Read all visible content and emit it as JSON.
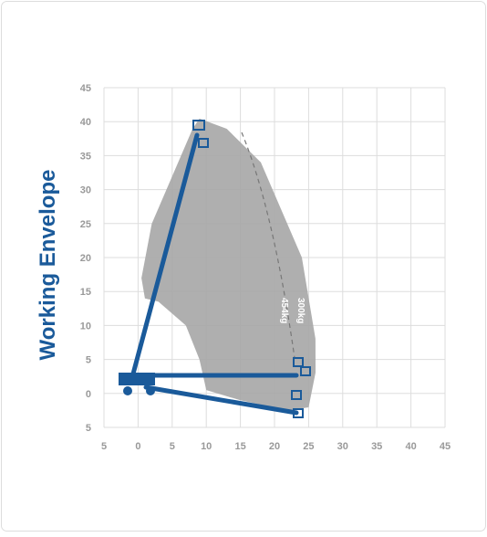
{
  "chart_data": {
    "type": "envelope",
    "title": "Working Envelope",
    "xlim": [
      -5,
      45
    ],
    "xticks": [
      {
        "value": -5,
        "label": "5"
      },
      0,
      5,
      10,
      15,
      20,
      25,
      30,
      35,
      40,
      45
    ],
    "ylim": [
      -5,
      45
    ],
    "yticks": [
      {
        "value": -5,
        "label": "5"
      },
      0,
      5,
      10,
      15,
      20,
      25,
      30,
      35,
      40,
      45
    ],
    "grid": true,
    "annotations": [
      "300kg",
      "454kg"
    ]
  }
}
